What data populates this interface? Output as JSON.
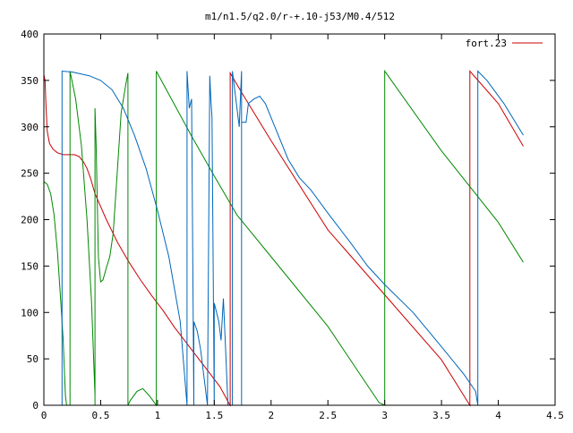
{
  "chart_data": {
    "type": "line",
    "title": "m1/n1.5/q2.0/r-+.10-j53/M0.4/512",
    "xlabel": "",
    "ylabel": "",
    "xlim": [
      0,
      4.5
    ],
    "ylim": [
      0,
      400
    ],
    "x_ticks": [
      0,
      0.5,
      1,
      1.5,
      2,
      2.5,
      3,
      3.5,
      4,
      4.5
    ],
    "x_tick_labels": [
      "0",
      "0.5",
      "1",
      "1.5",
      "2",
      "2.5",
      "3",
      "3.5",
      "4",
      "4.5"
    ],
    "y_ticks": [
      0,
      50,
      100,
      150,
      200,
      250,
      300,
      350,
      400
    ],
    "y_tick_labels": [
      "0",
      "50",
      "100",
      "150",
      "200",
      "250",
      "300",
      "350",
      "400"
    ],
    "grid": false,
    "legend_position": "top-right",
    "legend": [
      {
        "label": "fort.23",
        "color": "#cc0000"
      }
    ],
    "series": [
      {
        "name": "fort.23",
        "color": "#cc0000",
        "points": [
          [
            0.0,
            0
          ],
          [
            0.0,
            356
          ],
          [
            0.01,
            350
          ],
          [
            0.02,
            320
          ],
          [
            0.03,
            295
          ],
          [
            0.05,
            282
          ],
          [
            0.08,
            276
          ],
          [
            0.12,
            272
          ],
          [
            0.17,
            270
          ],
          [
            0.23,
            270
          ],
          [
            0.27,
            270
          ],
          [
            0.31,
            268
          ],
          [
            0.35,
            262
          ],
          [
            0.38,
            255
          ],
          [
            0.41,
            245
          ],
          [
            0.45,
            228
          ],
          [
            0.55,
            200
          ],
          [
            0.65,
            175
          ],
          [
            0.75,
            154
          ],
          [
            0.85,
            135
          ],
          [
            0.95,
            118
          ],
          [
            1.05,
            102
          ],
          [
            1.15,
            84
          ],
          [
            1.25,
            68
          ],
          [
            1.35,
            52
          ],
          [
            1.45,
            36
          ],
          [
            1.55,
            20
          ],
          [
            1.63,
            2
          ],
          [
            1.64,
            0
          ],
          [
            1.64,
            358
          ],
          [
            1.75,
            335
          ],
          [
            2.0,
            285
          ],
          [
            2.5,
            189
          ],
          [
            3.0,
            119
          ],
          [
            3.5,
            49
          ],
          [
            3.75,
            0
          ],
          [
            3.75,
            360
          ],
          [
            4.0,
            325
          ],
          [
            4.22,
            279
          ]
        ]
      },
      {
        "name": "",
        "color": "#008800",
        "points": [
          [
            0.0,
            0
          ],
          [
            0.0,
            241
          ],
          [
            0.03,
            238
          ],
          [
            0.06,
            228
          ],
          [
            0.09,
            205
          ],
          [
            0.12,
            165
          ],
          [
            0.15,
            110
          ],
          [
            0.17,
            70
          ],
          [
            0.18,
            40
          ],
          [
            0.19,
            10
          ],
          [
            0.2,
            0
          ],
          [
            0.23,
            0
          ],
          [
            0.23,
            360
          ],
          [
            0.28,
            330
          ],
          [
            0.33,
            280
          ],
          [
            0.38,
            200
          ],
          [
            0.42,
            110
          ],
          [
            0.45,
            10
          ],
          [
            0.45,
            0
          ],
          [
            0.45,
            320
          ],
          [
            0.46,
            280
          ],
          [
            0.48,
            160
          ],
          [
            0.5,
            133
          ],
          [
            0.52,
            135
          ],
          [
            0.55,
            148
          ],
          [
            0.58,
            160
          ],
          [
            0.61,
            185
          ],
          [
            0.64,
            240
          ],
          [
            0.68,
            315
          ],
          [
            0.72,
            345
          ],
          [
            0.74,
            358
          ],
          [
            0.74,
            0
          ],
          [
            0.76,
            5
          ],
          [
            0.82,
            15
          ],
          [
            0.87,
            18
          ],
          [
            0.93,
            10
          ],
          [
            0.99,
            0
          ],
          [
            0.99,
            360
          ],
          [
            1.1,
            335
          ],
          [
            1.3,
            290
          ],
          [
            1.5,
            247
          ],
          [
            1.7,
            205
          ],
          [
            2.0,
            160
          ],
          [
            2.5,
            85
          ],
          [
            2.95,
            3
          ],
          [
            3.0,
            0
          ],
          [
            3.0,
            360
          ],
          [
            3.5,
            274
          ],
          [
            4.0,
            197
          ],
          [
            4.22,
            154
          ]
        ]
      },
      {
        "name": "",
        "color": "#0066bb",
        "points": [
          [
            0.0,
            0
          ],
          [
            0.03,
            0
          ],
          [
            0.13,
            0
          ],
          [
            0.16,
            0
          ],
          [
            0.16,
            360
          ],
          [
            0.25,
            359
          ],
          [
            0.4,
            355
          ],
          [
            0.5,
            350
          ],
          [
            0.6,
            340
          ],
          [
            0.7,
            320
          ],
          [
            0.8,
            290
          ],
          [
            0.9,
            255
          ],
          [
            1.0,
            210
          ],
          [
            1.1,
            160
          ],
          [
            1.2,
            90
          ],
          [
            1.26,
            0
          ],
          [
            1.26,
            360
          ],
          [
            1.28,
            320
          ],
          [
            1.3,
            330
          ],
          [
            1.32,
            0
          ],
          [
            1.32,
            90
          ],
          [
            1.35,
            80
          ],
          [
            1.38,
            60
          ],
          [
            1.4,
            40
          ],
          [
            1.42,
            20
          ],
          [
            1.44,
            0
          ],
          [
            1.46,
            355
          ],
          [
            1.47,
            330
          ],
          [
            1.48,
            310
          ],
          [
            1.5,
            0
          ],
          [
            1.5,
            110
          ],
          [
            1.52,
            100
          ],
          [
            1.54,
            90
          ],
          [
            1.56,
            70
          ],
          [
            1.58,
            115
          ],
          [
            1.6,
            60
          ],
          [
            1.62,
            0
          ],
          [
            1.66,
            0
          ],
          [
            1.66,
            360
          ],
          [
            1.69,
            330
          ],
          [
            1.72,
            300
          ],
          [
            1.74,
            360
          ],
          [
            1.74,
            0
          ],
          [
            1.74,
            305
          ],
          [
            1.78,
            305
          ],
          [
            1.8,
            325
          ],
          [
            1.85,
            330
          ],
          [
            1.9,
            333
          ],
          [
            1.95,
            325
          ],
          [
            2.05,
            295
          ],
          [
            2.15,
            265
          ],
          [
            2.25,
            245
          ],
          [
            2.35,
            232
          ],
          [
            2.5,
            207
          ],
          [
            2.7,
            175
          ],
          [
            2.85,
            150
          ],
          [
            3.0,
            130
          ],
          [
            3.25,
            100
          ],
          [
            3.5,
            63
          ],
          [
            3.7,
            33
          ],
          [
            3.8,
            15
          ],
          [
            3.82,
            0
          ],
          [
            3.82,
            360
          ],
          [
            3.9,
            350
          ],
          [
            4.05,
            325
          ],
          [
            4.22,
            291
          ]
        ]
      }
    ]
  }
}
